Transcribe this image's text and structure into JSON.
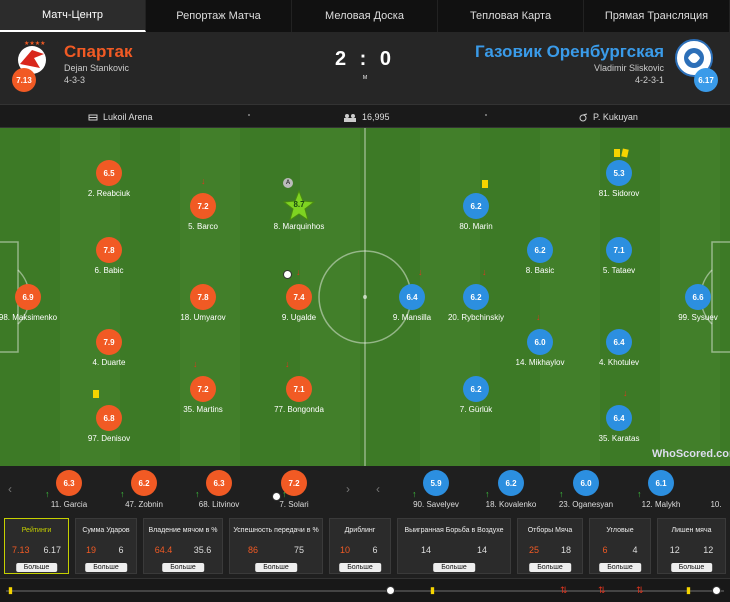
{
  "tabs": [
    {
      "label": "Матч-Центр",
      "active": true
    },
    {
      "label": "Репортаж Матча"
    },
    {
      "label": "Меловая Доска"
    },
    {
      "label": "Тепловая Карта"
    },
    {
      "label": "Прямая Трансляция"
    }
  ],
  "match": {
    "home": {
      "name": "Спартак",
      "coach": "Dejan Stankovic",
      "formation": "4-3-3",
      "rating": "7.13",
      "color": "#f15a24"
    },
    "away": {
      "name": "Газовик Оренбургская",
      "coach": "Vladimir Sliskovic",
      "formation": "4-2-3-1",
      "rating": "6.17",
      "color": "#3a9be9"
    },
    "score": "2 : 0",
    "score_sub": "м"
  },
  "info": {
    "venue": "Lukoil Arena",
    "attendance": "16,995",
    "referee": "P. Kukuyan"
  },
  "home_players": [
    {
      "rating": "6.9",
      "name": "98. Maksimenko"
    },
    {
      "rating": "6.5",
      "name": "2. Reabciuk"
    },
    {
      "rating": "7.8",
      "name": "6. Babic"
    },
    {
      "rating": "7.9",
      "name": "4. Duarte"
    },
    {
      "rating": "6.8",
      "name": "97. Denisov"
    },
    {
      "rating": "7.2",
      "name": "5. Barco"
    },
    {
      "rating": "7.8",
      "name": "18. Umyarov"
    },
    {
      "rating": "7.2",
      "name": "35. Martins"
    },
    {
      "rating": "8.7",
      "name": "8. Marquinhos"
    },
    {
      "rating": "7.4",
      "name": "9. Ugalde"
    },
    {
      "rating": "7.1",
      "name": "77. Bongonda"
    }
  ],
  "away_players": [
    {
      "rating": "6.6",
      "name": "99. Sysuev"
    },
    {
      "rating": "5.3",
      "name": "81. Sidorov"
    },
    {
      "rating": "7.1",
      "name": "5. Tataev"
    },
    {
      "rating": "6.4",
      "name": "4. Khotulev"
    },
    {
      "rating": "6.4",
      "name": "35. Karatas"
    },
    {
      "rating": "6.2",
      "name": "8. Basic"
    },
    {
      "rating": "6.0",
      "name": "14. Mikhaylov"
    },
    {
      "rating": "6.2",
      "name": "80. Marin"
    },
    {
      "rating": "6.2",
      "name": "20. Rybchinskiy"
    },
    {
      "rating": "6.2",
      "name": "7. Gürlük"
    },
    {
      "rating": "6.4",
      "name": "9. Mansilla"
    }
  ],
  "home_subs": [
    {
      "rating": "6.3",
      "name": "11. Garcia"
    },
    {
      "rating": "6.2",
      "name": "47. Zobnin"
    },
    {
      "rating": "6.3",
      "name": "68. Litvinov"
    },
    {
      "rating": "7.2",
      "name": "7. Solari"
    }
  ],
  "away_subs": [
    {
      "rating": "5.9",
      "name": "90. Savelyev"
    },
    {
      "rating": "6.2",
      "name": "18. Kovalenko"
    },
    {
      "rating": "6.0",
      "name": "23. Oganesyan"
    },
    {
      "rating": "6.1",
      "name": "12. Malykh"
    },
    {
      "rating": "",
      "name": "10."
    }
  ],
  "watermark": "WhoScored.com",
  "stats": [
    {
      "title": "Рейтинги",
      "home": "7.13",
      "away": "6.17",
      "button": "Больше",
      "active": true
    },
    {
      "title": "Сумма Ударов",
      "home": "19",
      "away": "6",
      "button": "Больше"
    },
    {
      "title": "Владение мячом в %",
      "home": "64.4",
      "away": "35.6",
      "button": "Больше"
    },
    {
      "title": "Успешность передачи в %",
      "home": "86",
      "away": "75",
      "button": "Больше"
    },
    {
      "title": "Дриблинг",
      "home": "10",
      "away": "6",
      "button": "Больше"
    },
    {
      "title": "Выигранная Борьба в Воздухе",
      "home": "14",
      "away": "14",
      "button": "Больше",
      "neutral": true
    },
    {
      "title": "Отборы Мяча",
      "home": "25",
      "away": "18",
      "button": "Больше"
    },
    {
      "title": "Угловые",
      "home": "6",
      "away": "4",
      "button": "Больше"
    },
    {
      "title": "Лишен мяча",
      "home": "12",
      "away": "12",
      "button": "Больше",
      "neutral": true
    }
  ]
}
